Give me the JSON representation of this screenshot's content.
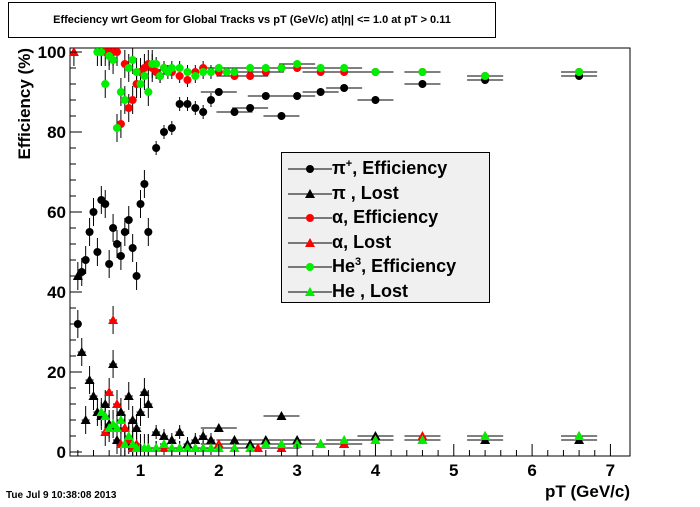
{
  "title": "Effeciency wrt Geom for Global Tracks vs pT (GeV/c) at|η| <= 1.0 at pT > 0.11",
  "timestamp": "Tue Jul  9 10:38:08 2013",
  "colors": {
    "black": "#000000",
    "red": "#ff0000",
    "green": "#00ee00",
    "legend_bg": "#f0f0f0"
  },
  "chart_data": {
    "type": "scatter",
    "title": "Effeciency wrt Geom for Global Tracks vs pT (GeV/c) at|η| <= 1.0 at pT > 0.11",
    "xlabel": "pT (GeV/c)",
    "ylabel": "Efficiency (%)",
    "xlim": [
      0.1,
      7.25
    ],
    "ylim": [
      -1,
      101
    ],
    "xticks": [
      1,
      2,
      3,
      4,
      5,
      6,
      7
    ],
    "yticks": [
      0,
      20,
      40,
      60,
      80,
      100
    ],
    "grid": false,
    "legend_position": "center-right",
    "series": [
      {
        "name": "π, Efficiency",
        "marker": "circle",
        "color": "#000000",
        "x": [
          0.2,
          0.25,
          0.3,
          0.35,
          0.4,
          0.45,
          0.5,
          0.55,
          0.6,
          0.65,
          0.7,
          0.75,
          0.8,
          0.85,
          0.9,
          0.95,
          1.0,
          1.05,
          1.1,
          1.2,
          1.3,
          1.4,
          1.5,
          1.6,
          1.7,
          1.8,
          1.9,
          2.0,
          2.2,
          2.4,
          2.6,
          2.8,
          3.0,
          3.3,
          3.6,
          4.0,
          4.6,
          5.4,
          6.6
        ],
        "y": [
          32,
          45,
          48,
          55,
          60,
          50,
          63,
          62,
          47,
          56,
          52,
          49,
          55,
          58,
          51,
          44,
          62,
          67,
          55,
          76,
          80,
          81,
          87,
          87,
          86,
          85,
          88,
          90,
          85,
          86,
          89,
          84,
          89,
          90,
          91,
          88,
          92,
          93,
          94
        ]
      },
      {
        "name": "π, Lost",
        "marker": "triangle",
        "color": "#000000",
        "x": [
          0.2,
          0.25,
          0.3,
          0.35,
          0.4,
          0.45,
          0.5,
          0.55,
          0.6,
          0.65,
          0.7,
          0.75,
          0.8,
          0.85,
          0.9,
          0.95,
          1.0,
          1.05,
          1.1,
          1.2,
          1.3,
          1.4,
          1.5,
          1.6,
          1.7,
          1.8,
          1.9,
          2.0,
          2.2,
          2.4,
          2.6,
          2.8,
          3.0,
          3.3,
          3.6,
          4.0,
          4.6,
          5.4,
          6.6
        ],
        "y": [
          44,
          25,
          8,
          18,
          14,
          10,
          9,
          12,
          7,
          22,
          3,
          10,
          6,
          14,
          8,
          6,
          10,
          15,
          12,
          5,
          4,
          3,
          5,
          2,
          3,
          4,
          3,
          6,
          3,
          2,
          3,
          9,
          3,
          2,
          2,
          4,
          3,
          3,
          3
        ]
      },
      {
        "name": "α, Efficiency",
        "marker": "circle",
        "color": "#ff0000",
        "x": [
          0.5,
          0.55,
          0.6,
          0.65,
          0.7,
          0.75,
          0.8,
          0.85,
          0.9,
          0.95,
          1.0,
          1.05,
          1.1,
          1.15,
          1.2,
          1.25,
          1.3,
          1.4,
          1.5,
          1.6,
          1.7,
          1.8,
          2.0,
          2.2,
          2.4,
          2.6,
          2.8,
          3.0,
          3.3,
          3.6,
          4.0,
          4.6,
          5.4,
          6.6
        ],
        "y": [
          100,
          100,
          100,
          100,
          100,
          82,
          97,
          86,
          88,
          92,
          95,
          96,
          97,
          96,
          95,
          94,
          96,
          95,
          94,
          93,
          95,
          96,
          95,
          94,
          94,
          95,
          96,
          96,
          95,
          95,
          95,
          95,
          94,
          95
        ]
      },
      {
        "name": "α, Lost",
        "marker": "triangle",
        "color": "#ff0000",
        "x": [
          0.15,
          0.55,
          0.6,
          0.65,
          0.7,
          0.75,
          0.8,
          0.85,
          0.9,
          0.95,
          1.0,
          1.1,
          1.2,
          1.3,
          1.5,
          1.7,
          1.9,
          2.0,
          2.2,
          2.5,
          2.8,
          3.0,
          3.3,
          3.6,
          4.0,
          4.6,
          5.4,
          6.6
        ],
        "y": [
          100,
          5,
          15,
          33,
          12,
          2,
          6,
          3,
          1,
          2,
          1,
          1,
          1,
          1,
          1,
          1,
          1,
          2,
          1,
          1,
          1,
          2,
          2,
          2,
          3,
          4,
          4,
          4
        ]
      },
      {
        "name": "He3, Efficiency",
        "marker": "circle",
        "color": "#00ee00",
        "x": [
          0.45,
          0.5,
          0.55,
          0.6,
          0.65,
          0.7,
          0.75,
          0.8,
          0.85,
          0.9,
          0.95,
          1.0,
          1.05,
          1.1,
          1.15,
          1.2,
          1.25,
          1.3,
          1.35,
          1.4,
          1.5,
          1.6,
          1.7,
          1.8,
          1.9,
          2.0,
          2.1,
          2.2,
          2.4,
          2.6,
          2.8,
          3.0,
          3.3,
          3.6,
          4.0,
          4.6,
          5.4,
          6.6
        ],
        "y": [
          100,
          100,
          92,
          99,
          98,
          81,
          90,
          88,
          96,
          98,
          95,
          92,
          94,
          90,
          97,
          97,
          94,
          96,
          95,
          96,
          96,
          95,
          94,
          95,
          95,
          96,
          95,
          95,
          96,
          96,
          96,
          97,
          96,
          96,
          95,
          95,
          94,
          95
        ]
      },
      {
        "name": "He3, Lost",
        "marker": "triangle",
        "color": "#00ee00",
        "x": [
          0.5,
          0.55,
          0.6,
          0.65,
          0.7,
          0.75,
          0.8,
          0.85,
          0.9,
          0.95,
          1.0,
          1.05,
          1.1,
          1.2,
          1.3,
          1.4,
          1.5,
          1.6,
          1.7,
          1.8,
          1.9,
          2.0,
          2.2,
          2.4,
          2.6,
          2.8,
          3.0,
          3.3,
          3.6,
          4.0,
          4.6,
          5.4,
          6.6
        ],
        "y": [
          10,
          9,
          6,
          7,
          6,
          8,
          2,
          4,
          2,
          1,
          1,
          1,
          1,
          1,
          2,
          1,
          1,
          1,
          1,
          1,
          1,
          1,
          1,
          1,
          2,
          2,
          2,
          2,
          3,
          3,
          3,
          4,
          4
        ]
      }
    ]
  },
  "legend": [
    {
      "sym": "π",
      "sup": "+",
      "sub": "",
      "text": ", Efficiency",
      "marker": "circle",
      "color": "#000000"
    },
    {
      "sym": "π",
      "sup": "",
      "sub": "",
      "text": " , Lost",
      "marker": "triangle",
      "color": "#000000"
    },
    {
      "sym": "α",
      "sup": "",
      "sub": "",
      "text": ", Efficiency",
      "marker": "circle",
      "color": "#ff0000"
    },
    {
      "sym": "α",
      "sup": "",
      "sub": "",
      "text": ", Lost",
      "marker": "triangle",
      "color": "#ff0000"
    },
    {
      "sym": "He",
      "sup": "3",
      "sub": "",
      "text": ", Efficiency",
      "marker": "circle",
      "color": "#00ee00"
    },
    {
      "sym": "He",
      "sup": "",
      "sub": "",
      "text": " , Lost",
      "marker": "triangle",
      "color": "#00ee00"
    }
  ]
}
